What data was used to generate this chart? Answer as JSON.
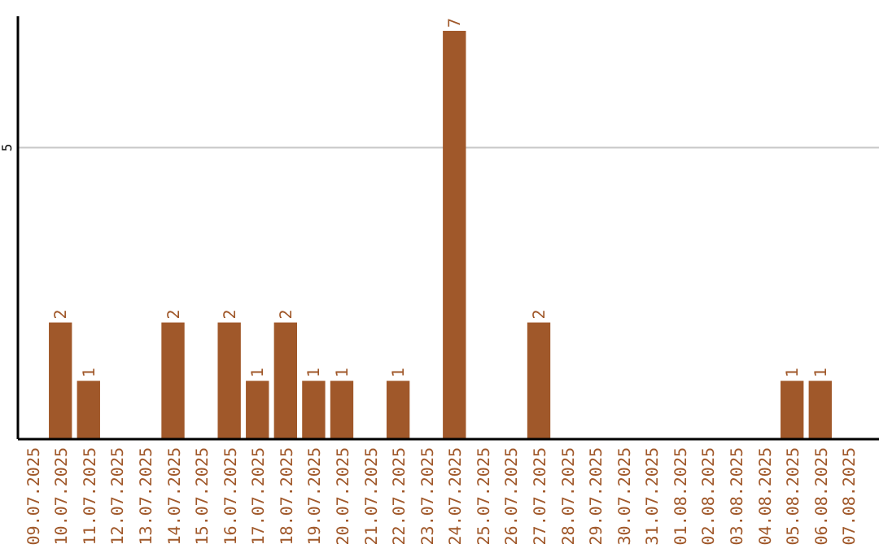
{
  "chart_data": {
    "type": "bar",
    "categories": [
      "09.07.2025",
      "10.07.2025",
      "11.07.2025",
      "12.07.2025",
      "13.07.2025",
      "14.07.2025",
      "15.07.2025",
      "16.07.2025",
      "17.07.2025",
      "18.07.2025",
      "19.07.2025",
      "20.07.2025",
      "21.07.2025",
      "22.07.2025",
      "23.07.2025",
      "24.07.2025",
      "25.07.2025",
      "26.07.2025",
      "27.07.2025",
      "28.07.2025",
      "29.07.2025",
      "30.07.2025",
      "31.07.2025",
      "01.08.2025",
      "02.08.2025",
      "03.08.2025",
      "04.08.2025",
      "05.08.2025",
      "06.08.2025",
      "07.08.2025"
    ],
    "values": [
      0,
      2,
      1,
      0,
      0,
      2,
      0,
      2,
      1,
      2,
      1,
      1,
      0,
      1,
      0,
      7,
      0,
      0,
      2,
      0,
      0,
      0,
      0,
      0,
      0,
      0,
      0,
      1,
      1,
      0
    ],
    "value_labels": [
      null,
      "2",
      "1",
      null,
      null,
      "2",
      null,
      "2",
      "1",
      "2",
      "1",
      "1",
      null,
      "1",
      null,
      "7",
      null,
      null,
      "2",
      null,
      null,
      null,
      null,
      null,
      null,
      null,
      null,
      "1",
      "1",
      null
    ],
    "color": "#a0582a",
    "ylim": [
      0,
      7.25
    ],
    "yticks": [
      5
    ],
    "grid": "y"
  }
}
